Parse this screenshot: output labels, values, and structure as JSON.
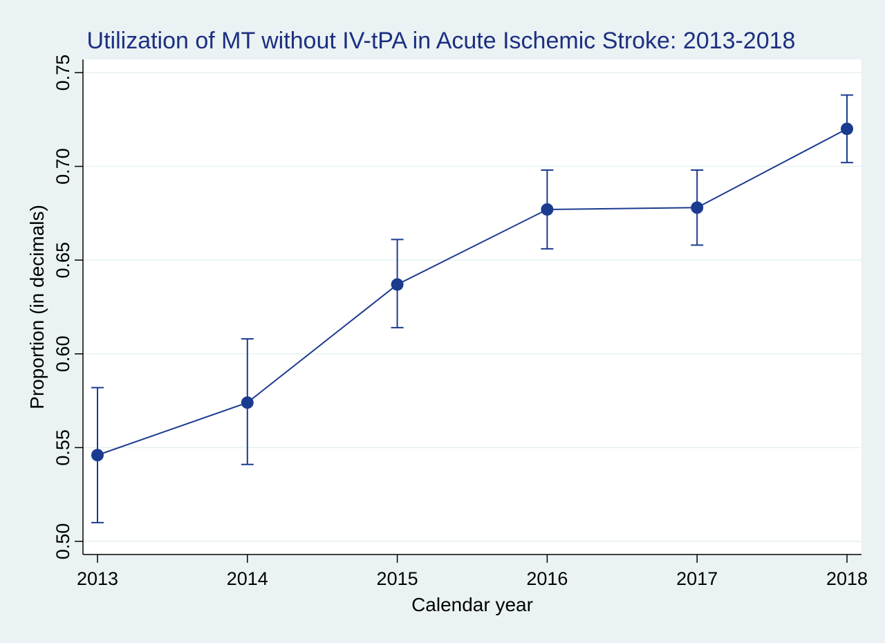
{
  "chart_data": {
    "type": "line",
    "title": "Utilization of MT without IV-tPA in Acute Ischemic Stroke: 2013-2018",
    "xlabel": "Calendar year",
    "ylabel": "Proportion (in decimals)",
    "x": [
      2013,
      2014,
      2015,
      2016,
      2017,
      2018
    ],
    "x_tick_labels": [
      "2013",
      "2014",
      "2015",
      "2016",
      "2017",
      "2018"
    ],
    "ylim": [
      0.5,
      0.75
    ],
    "y_ticks": [
      0.5,
      0.55,
      0.6,
      0.65,
      0.7,
      0.75
    ],
    "y_tick_labels": [
      "0.50",
      "0.55",
      "0.60",
      "0.65",
      "0.70",
      "0.75"
    ],
    "grid": true,
    "series": [
      {
        "values": [
          0.546,
          0.574,
          0.637,
          0.677,
          0.678,
          0.72
        ],
        "ci_lower": [
          0.51,
          0.541,
          0.614,
          0.656,
          0.658,
          0.702
        ],
        "ci_upper": [
          0.582,
          0.608,
          0.661,
          0.698,
          0.698,
          0.738
        ],
        "color": "#1a3b8f"
      }
    ],
    "colors": {
      "background": "#eaf2f3",
      "plot_area": "#ffffff",
      "title": "#1c2f80",
      "series": "#1a3b8f",
      "grid": "#e6f0f0"
    }
  }
}
